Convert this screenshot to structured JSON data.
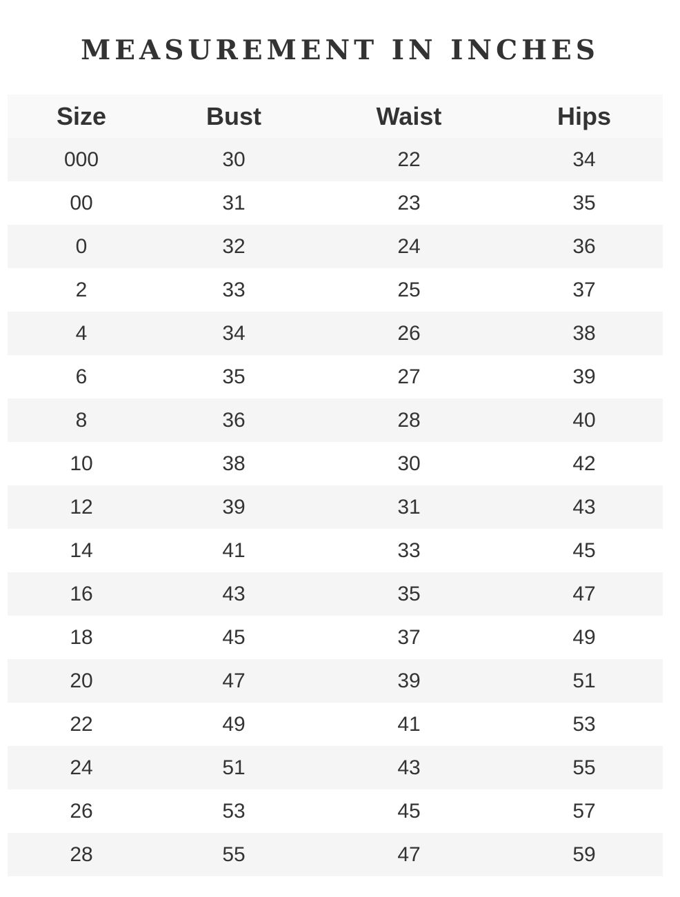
{
  "title": "MEASUREMENT IN INCHES",
  "headers": [
    "Size",
    "Bust",
    "Waist",
    "Hips"
  ],
  "rows": [
    [
      "000",
      "30",
      "22",
      "34"
    ],
    [
      "00",
      "31",
      "23",
      "35"
    ],
    [
      "0",
      "32",
      "24",
      "36"
    ],
    [
      "2",
      "33",
      "25",
      "37"
    ],
    [
      "4",
      "34",
      "26",
      "38"
    ],
    [
      "6",
      "35",
      "27",
      "39"
    ],
    [
      "8",
      "36",
      "28",
      "40"
    ],
    [
      "10",
      "38",
      "30",
      "42"
    ],
    [
      "12",
      "39",
      "31",
      "43"
    ],
    [
      "14",
      "41",
      "33",
      "45"
    ],
    [
      "16",
      "43",
      "35",
      "47"
    ],
    [
      "18",
      "45",
      "37",
      "49"
    ],
    [
      "20",
      "47",
      "39",
      "51"
    ],
    [
      "22",
      "49",
      "41",
      "53"
    ],
    [
      "24",
      "51",
      "43",
      "55"
    ],
    [
      "26",
      "53",
      "45",
      "57"
    ],
    [
      "28",
      "55",
      "47",
      "59"
    ]
  ]
}
